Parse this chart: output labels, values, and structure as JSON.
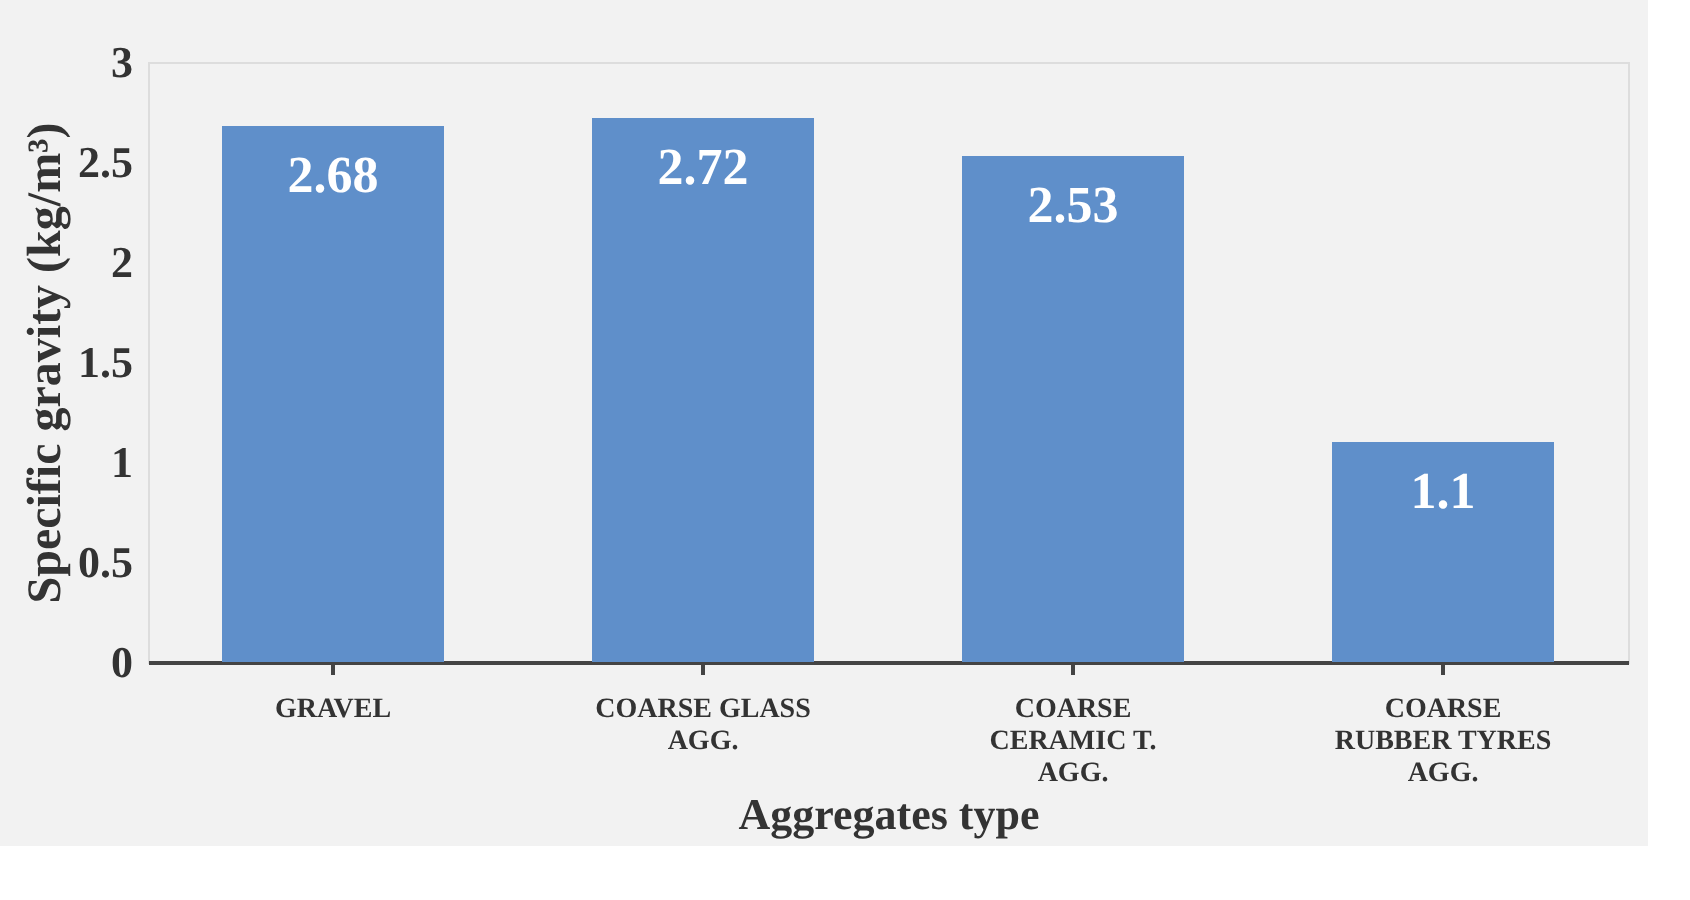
{
  "chart_data": {
    "type": "bar",
    "xlabel": "Aggregates type",
    "ylabel": "Specific gravity (kg/m³)",
    "categories": [
      "GRAVEL",
      "COARSE GLASS\nAGG.",
      "COARSE\nCERAMIC T.\nAGG.",
      "COARSE\nRUBBER TYRES\nAGG."
    ],
    "values": [
      2.68,
      2.72,
      2.53,
      1.1
    ],
    "color": "#5f8fca",
    "ylim": [
      0,
      3
    ],
    "yticks": [
      0,
      0.5,
      1,
      1.5,
      2,
      2.5,
      3
    ],
    "grid": false,
    "data_labels": true
  }
}
